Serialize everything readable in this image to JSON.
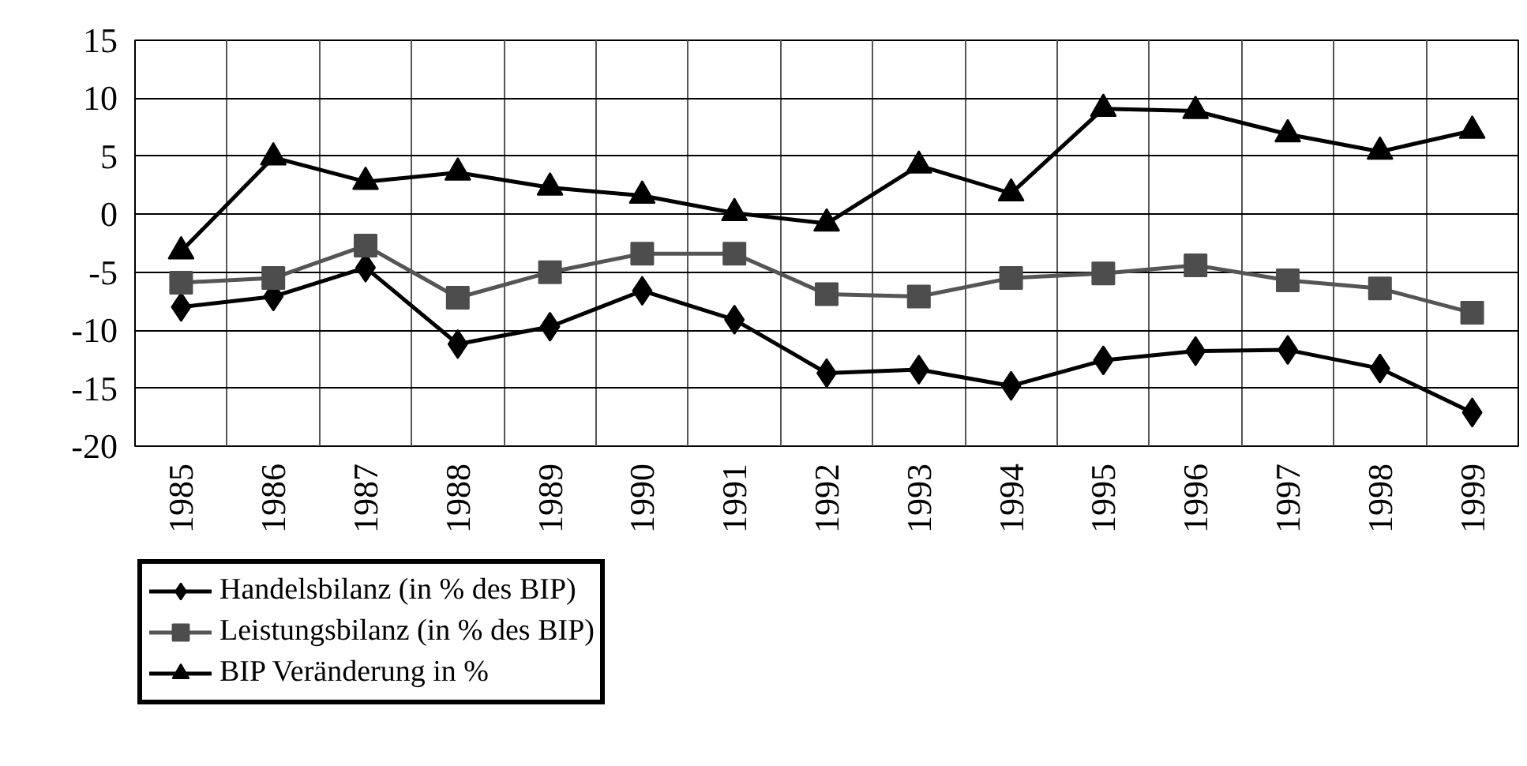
{
  "chart_data": {
    "type": "line",
    "categories": [
      "1985",
      "1986",
      "1987",
      "1988",
      "1989",
      "1990",
      "1991",
      "1992",
      "1993",
      "1994",
      "1995",
      "1996",
      "1997",
      "1998",
      "1999"
    ],
    "series": [
      {
        "name": "Handelsbilanz (in % des BIP)",
        "color": "#000000",
        "marker": "diamond",
        "values": [
          -8.0,
          -7.1,
          -4.6,
          -11.2,
          -9.7,
          -6.6,
          -9.1,
          -13.7,
          -13.4,
          -14.8,
          -12.6,
          -11.8,
          -11.7,
          -13.3,
          -17.1
        ]
      },
      {
        "name": "Leistungsbilanz (in % des BIP)",
        "color": "#4d4d4d",
        "marker": "square",
        "values": [
          -5.9,
          -5.5,
          -2.7,
          -7.2,
          -5.0,
          -3.4,
          -3.4,
          -6.9,
          -7.1,
          -5.5,
          -5.1,
          -4.4,
          -5.7,
          -6.4,
          -8.5
        ]
      },
      {
        "name": "BIP Veränderung in %",
        "color": "#000000",
        "marker": "triangle",
        "values": [
          -3.2,
          4.9,
          2.8,
          3.6,
          2.3,
          1.6,
          0.1,
          -0.8,
          4.2,
          1.8,
          9.1,
          8.9,
          6.9,
          5.4,
          7.2
        ]
      }
    ],
    "ylim": [
      -20,
      15
    ],
    "yticks": [
      -20,
      -15,
      -10,
      -5,
      0,
      5,
      10,
      15
    ],
    "grid": true,
    "legend": "bottom left",
    "line_style": "solid"
  }
}
